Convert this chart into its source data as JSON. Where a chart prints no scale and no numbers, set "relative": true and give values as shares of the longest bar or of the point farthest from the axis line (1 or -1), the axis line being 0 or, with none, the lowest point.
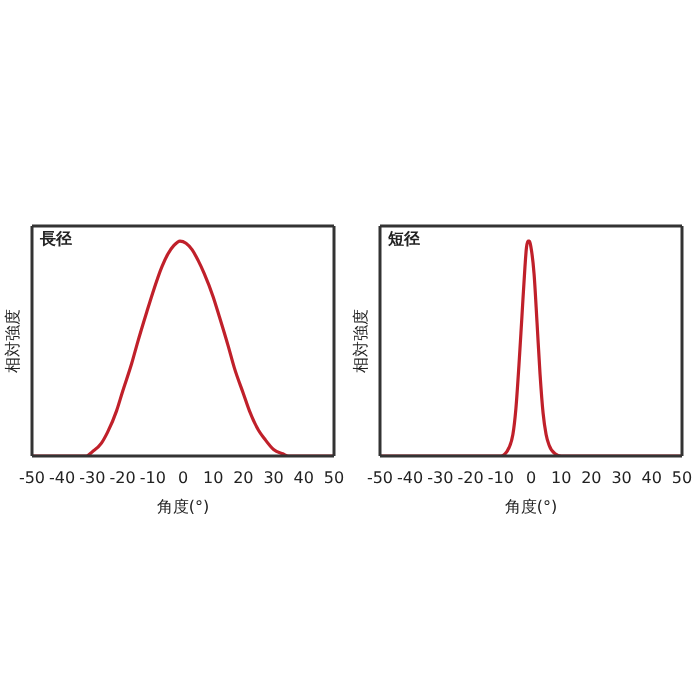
{
  "chart_data": [
    {
      "type": "line",
      "title": "長径",
      "xlabel": "角度(°)",
      "ylabel": "相対強度",
      "relative": true,
      "xlim": [
        -50,
        50
      ],
      "xticks": [
        -50,
        -40,
        -30,
        -20,
        -10,
        0,
        10,
        20,
        30,
        40,
        50
      ],
      "marker": "none",
      "line_style": "solid",
      "series": [
        {
          "color": "#c0202a",
          "x": [
            -50,
            -40,
            -32,
            -30,
            -27,
            -25,
            -22,
            -20,
            -17,
            -15,
            -12,
            -10,
            -7,
            -5,
            -3,
            -1,
            1,
            3,
            5,
            7,
            10,
            12,
            15,
            17,
            20,
            22,
            25,
            27,
            30,
            33,
            35,
            40,
            50
          ],
          "values": [
            0,
            0,
            0,
            0.02,
            0.06,
            0.11,
            0.21,
            0.3,
            0.43,
            0.53,
            0.67,
            0.76,
            0.88,
            0.94,
            0.98,
            1,
            0.99,
            0.96,
            0.91,
            0.85,
            0.74,
            0.65,
            0.51,
            0.41,
            0.29,
            0.21,
            0.12,
            0.08,
            0.03,
            0.01,
            0,
            0,
            0
          ]
        }
      ]
    },
    {
      "type": "line",
      "title": "短径",
      "xlabel": "角度(°)",
      "ylabel": "相対強度",
      "relative": true,
      "xlim": [
        -50,
        50
      ],
      "xticks": [
        -50,
        -40,
        -30,
        -20,
        -10,
        0,
        10,
        20,
        30,
        40,
        50
      ],
      "marker": "none",
      "line_style": "solid",
      "series": [
        {
          "color": "#c0202a",
          "x": [
            -50,
            -20,
            -10,
            -8,
            -6,
            -5,
            -4,
            -3,
            -2,
            -1.5,
            -1,
            -0.5,
            0,
            1,
            2,
            3,
            4,
            5,
            6,
            8,
            10,
            20,
            50
          ],
          "values": [
            0,
            0,
            0,
            0.02,
            0.1,
            0.22,
            0.42,
            0.65,
            0.88,
            0.97,
            1,
            1,
            0.97,
            0.85,
            0.62,
            0.38,
            0.2,
            0.1,
            0.05,
            0.01,
            0,
            0,
            0
          ]
        }
      ]
    }
  ]
}
